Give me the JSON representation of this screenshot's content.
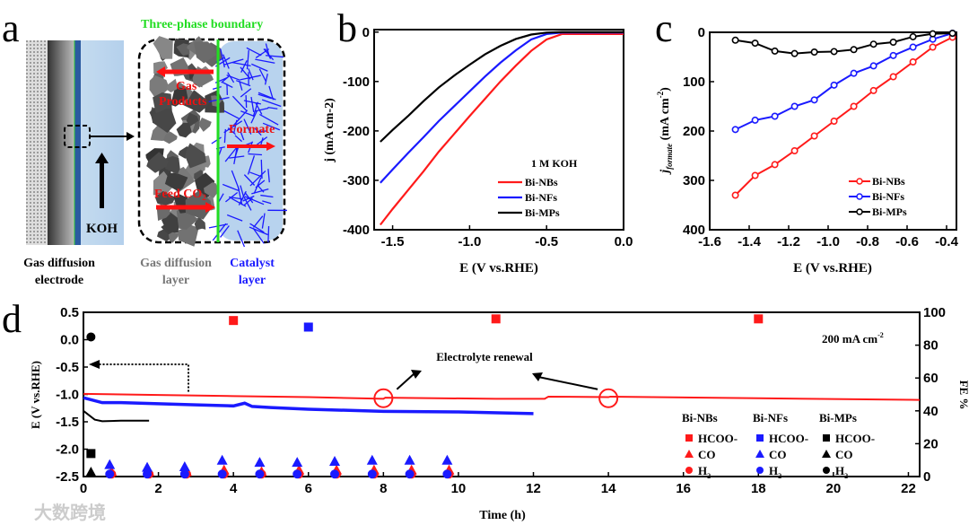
{
  "colors": {
    "red": "#ff1a1a",
    "blue": "#1a1aff",
    "black": "#000000",
    "green": "#22dd22",
    "gdl": "#555555"
  },
  "panel_a": {
    "label": "a",
    "title": "Three-phase boundary",
    "gas_products_1": "Gas",
    "gas_products_2": "Products",
    "formate": "Formate",
    "feed_co2": "Feed CO",
    "feed_co2_sub": "2",
    "koh": "KOH",
    "gde_1": "Gas diffusion",
    "gde_2": "electrode",
    "gdl_1": "Gas diffusion",
    "gdl_2": "layer",
    "cat_1": "Catalyst",
    "cat_2": "layer"
  },
  "watermark": "大数跨境",
  "chart_data": [
    {
      "panel": "b",
      "type": "line",
      "xlabel": "E (V vs.RHE)",
      "ylabel": "j (mA cm-2)",
      "xlim": [
        -1.62,
        0
      ],
      "ylim": [
        -400,
        5
      ],
      "xticks": [
        -1.5,
        -1.0,
        -0.5,
        0.0
      ],
      "xtick_labels": [
        "-1.5",
        "-1.0",
        "-0.5",
        "0.0"
      ],
      "yticks": [
        0,
        -100,
        -200,
        -300,
        -400
      ],
      "ytick_labels": [
        "0",
        "-100",
        "-200",
        "-300",
        "-400"
      ],
      "legend_title": "1 M KOH",
      "legend": "lower-right",
      "series": [
        {
          "name": "Bi-NBs",
          "color": "#ff1a1a",
          "x": [
            -1.58,
            -1.5,
            -1.4,
            -1.3,
            -1.2,
            -1.1,
            -1.0,
            -0.9,
            -0.8,
            -0.7,
            -0.6,
            -0.5,
            -0.4,
            -0.3,
            0
          ],
          "y": [
            -390,
            -358,
            -320,
            -282,
            -242,
            -206,
            -170,
            -135,
            -100,
            -68,
            -38,
            -15,
            -4,
            -4,
            -4
          ]
        },
        {
          "name": "Bi-NFs",
          "color": "#1a1aff",
          "x": [
            -1.58,
            -1.5,
            -1.4,
            -1.3,
            -1.2,
            -1.1,
            -1.0,
            -0.9,
            -0.8,
            -0.7,
            -0.6,
            -0.5,
            -0.4,
            0
          ],
          "y": [
            -305,
            -278,
            -245,
            -213,
            -180,
            -150,
            -120,
            -90,
            -62,
            -37,
            -15,
            -4,
            -1,
            -1
          ]
        },
        {
          "name": "Bi-MPs",
          "color": "#000000",
          "x": [
            -1.58,
            -1.5,
            -1.4,
            -1.3,
            -1.2,
            -1.1,
            -1.0,
            -0.9,
            -0.8,
            -0.7,
            -0.6,
            -0.5,
            -0.4,
            0
          ],
          "y": [
            -222,
            -198,
            -170,
            -140,
            -112,
            -88,
            -66,
            -45,
            -28,
            -14,
            -5,
            -1,
            0,
            0
          ]
        }
      ]
    },
    {
      "panel": "c",
      "type": "line",
      "xlabel": "E (V vs.RHE)",
      "ylabel": "j formate (mA cm-2)",
      "xlim": [
        -1.6,
        -0.35
      ],
      "ylim": [
        0,
        400
      ],
      "y_inverted": true,
      "xticks": [
        -1.6,
        -1.4,
        -1.2,
        -1.0,
        -0.8,
        -0.6,
        -0.4
      ],
      "xtick_labels": [
        "-1.6",
        "-1.4",
        "-1.2",
        "-1.0",
        "-0.8",
        "-0.6",
        "-0.4"
      ],
      "yticks": [
        0,
        100,
        200,
        300,
        400
      ],
      "ytick_labels": [
        "0",
        "100",
        "200",
        "300",
        "400"
      ],
      "legend": "lower-right",
      "x": [
        -1.47,
        -1.37,
        -1.27,
        -1.17,
        -1.07,
        -0.97,
        -0.87,
        -0.77,
        -0.67,
        -0.57,
        -0.47,
        -0.37
      ],
      "series": [
        {
          "name": "Bi-NBs",
          "color": "#ff1a1a",
          "values": [
            330,
            290,
            268,
            240,
            210,
            180,
            150,
            118,
            90,
            60,
            30,
            10
          ]
        },
        {
          "name": "Bi-NFs",
          "color": "#1a1aff",
          "values": [
            197,
            178,
            170,
            150,
            137,
            107,
            83,
            68,
            47,
            30,
            14,
            2
          ]
        },
        {
          "name": "Bi-MPs",
          "color": "#000000",
          "values": [
            16,
            22,
            38,
            43,
            40,
            39,
            35,
            24,
            20,
            9,
            3,
            2
          ]
        }
      ]
    },
    {
      "panel": "d",
      "type": "line+scatter",
      "xlabel": "Time (h)",
      "ylabel": "E (V vs.RHE)",
      "y2label": "FE %",
      "xlim": [
        0,
        22.3
      ],
      "ylim": [
        -2.5,
        0.5
      ],
      "y2lim": [
        0,
        100
      ],
      "xticks": [
        0,
        2,
        4,
        6,
        8,
        10,
        12,
        14,
        16,
        18,
        20,
        22
      ],
      "xtick_labels": [
        "0",
        "2",
        "4",
        "6",
        "8",
        "10",
        "12",
        "14",
        "16",
        "18",
        "20",
        "22"
      ],
      "yticks": [
        0.5,
        0,
        -0.5,
        -1,
        -1.5,
        -2,
        -2.5
      ],
      "ytick_labels": [
        "0.5",
        "0.0",
        "-0.5",
        "-1.0",
        "-1.5",
        "-2.0",
        "-2.5"
      ],
      "y2ticks": [
        100,
        80,
        60,
        40,
        20,
        0
      ],
      "y2tick_labels": [
        "100",
        "80",
        "60",
        "40",
        "20",
        "0"
      ],
      "annotation_current": "200 mA cm",
      "annotation_current_sup": "-2",
      "annotation_renewal": "Electrolyte renewal",
      "renewal_times": [
        8,
        14
      ],
      "potential_series": [
        {
          "name": "Bi-NBs",
          "color": "#ff1a1a",
          "t": [
            0,
            2,
            4,
            6,
            8,
            8.05,
            11,
            12.3,
            12.4,
            14,
            14.05,
            18,
            22.3
          ],
          "E": [
            -0.99,
            -1.01,
            -1.03,
            -1.05,
            -1.08,
            -1.06,
            -1.08,
            -1.08,
            -1.04,
            -1.05,
            -1.04,
            -1.07,
            -1.1
          ]
        },
        {
          "name": "Bi-NFs",
          "color": "#1a1aff",
          "t": [
            0,
            0.5,
            1,
            2,
            3,
            4,
            4.3,
            4.5,
            5,
            6,
            8,
            10,
            12
          ],
          "E": [
            -1.06,
            -1.15,
            -1.15,
            -1.17,
            -1.19,
            -1.21,
            -1.16,
            -1.22,
            -1.24,
            -1.27,
            -1.31,
            -1.32,
            -1.35
          ]
        },
        {
          "name": "Bi-MPs",
          "color": "#000000",
          "t": [
            0,
            0.15,
            0.3,
            0.5,
            1,
            1.75
          ],
          "E": [
            -1.3,
            -1.38,
            -1.46,
            -1.49,
            -1.48,
            -1.48
          ]
        }
      ],
      "fe_series": [
        {
          "catalyst": "Bi-NBs",
          "product": "HCOO-",
          "color": "#ff1a1a",
          "marker": "square",
          "t": [
            4,
            11,
            18
          ],
          "fe": [
            95,
            96,
            96
          ]
        },
        {
          "catalyst": "Bi-NBs",
          "product": "CO",
          "color": "#ff1a1a",
          "marker": "triangle",
          "t": [
            0.75,
            1.75,
            2.75,
            3.75,
            4.75,
            5.75,
            6.75,
            7.75,
            8.75,
            9.75
          ],
          "fe": [
            3,
            3,
            3,
            4,
            3,
            4,
            4,
            4,
            4,
            4
          ]
        },
        {
          "catalyst": "Bi-NBs",
          "product": "H2",
          "color": "#ff1a1a",
          "marker": "circle",
          "t": [
            0.75,
            1.75,
            2.75,
            3.75,
            4.75,
            5.75,
            6.75,
            7.75,
            8.75,
            9.75
          ],
          "fe": [
            1.5,
            1.5,
            1.5,
            1.5,
            1.5,
            1.5,
            1.5,
            1.5,
            1.5,
            1.5
          ]
        },
        {
          "catalyst": "Bi-NFs",
          "product": "HCOO-",
          "color": "#1a1aff",
          "marker": "square",
          "t": [
            6
          ],
          "fe": [
            91
          ]
        },
        {
          "catalyst": "Bi-NFs",
          "product": "CO",
          "color": "#1a1aff",
          "marker": "triangle",
          "t": [
            0.7,
            1.7,
            2.7,
            3.7,
            4.7,
            5.7,
            6.7,
            7.7,
            8.7,
            9.7
          ],
          "fe": [
            7.3,
            5.7,
            6,
            10,
            8.7,
            8.7,
            9.3,
            10,
            10,
            10
          ]
        },
        {
          "catalyst": "Bi-NFs",
          "product": "H2",
          "color": "#1a1aff",
          "marker": "circle",
          "t": [
            0.7,
            1.7,
            2.7,
            3.7,
            4.7,
            5.7,
            6.7,
            7.7,
            8.7,
            9.7
          ],
          "fe": [
            1.5,
            1.5,
            1.5,
            1.5,
            1.5,
            1.5,
            1.5,
            1.5,
            1.5,
            1.5
          ]
        },
        {
          "catalyst": "Bi-MPs",
          "product": "HCOO-",
          "color": "#000000",
          "marker": "square",
          "t": [
            0.2
          ],
          "fe": [
            14
          ]
        },
        {
          "catalyst": "Bi-MPs",
          "product": "CO",
          "color": "#000000",
          "marker": "triangle",
          "t": [
            0.2
          ],
          "fe": [
            2.7
          ]
        },
        {
          "catalyst": "Bi-MPs",
          "product": "H2",
          "color": "#000000",
          "marker": "circle",
          "t": [
            0.2
          ],
          "fe": [
            85
          ]
        }
      ],
      "legend": {
        "columns": [
          "Bi-NBs",
          "Bi-NFs",
          "Bi-MPs"
        ],
        "products": [
          "HCOO",
          "CO",
          "H"
        ],
        "product_sup": "-",
        "h2_sub": "2"
      }
    }
  ]
}
